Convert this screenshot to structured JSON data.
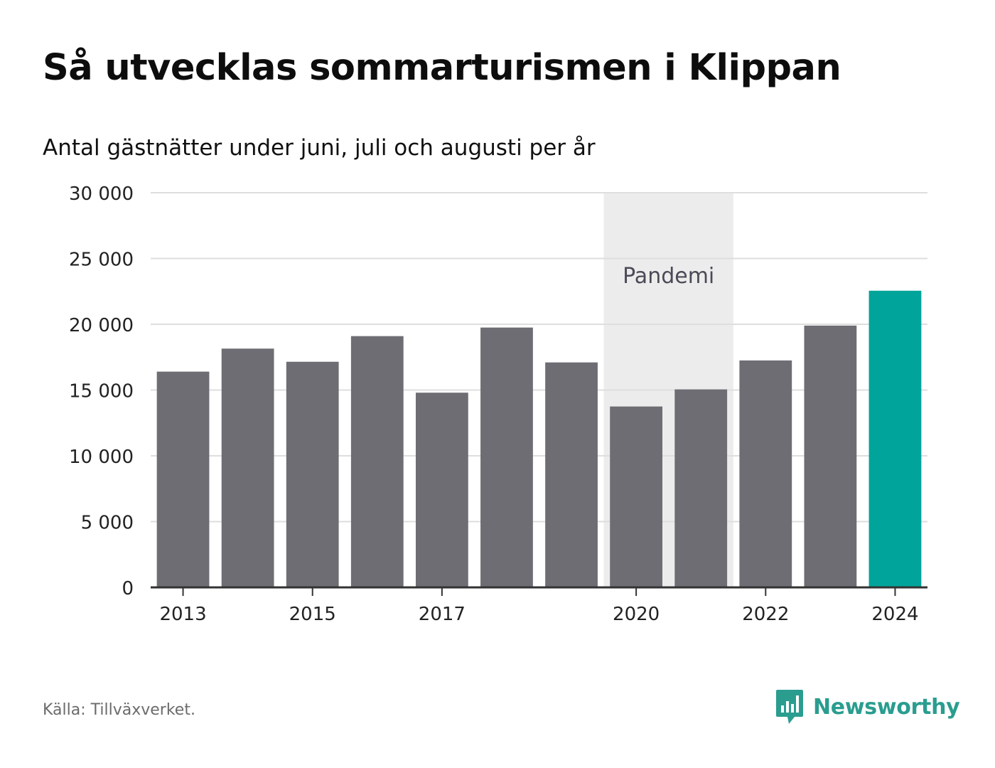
{
  "header": {
    "title": "Så utvecklas sommarturismen i Klippan",
    "subtitle": "Antal gästnätter under juni, juli och augusti per år"
  },
  "footer": {
    "source": "Källa: Tillväxverket.",
    "brand": "Newsworthy"
  },
  "colors": {
    "bar": "#6e6d73",
    "highlight": "#00a49a",
    "band": "#ececec",
    "grid": "#dedede",
    "axis": "#333333",
    "brand": "#2a9d8f"
  },
  "chart_data": {
    "type": "bar",
    "categories": [
      "2013",
      "2014",
      "2015",
      "2016",
      "2017",
      "2018",
      "2019",
      "2020",
      "2021",
      "2022",
      "2023",
      "2024"
    ],
    "values": [
      16400,
      18150,
      17150,
      19100,
      14800,
      19750,
      17100,
      13750,
      15050,
      17250,
      19900,
      22550
    ],
    "highlight_category": "2024",
    "x_tick_labels": [
      "2013",
      "2015",
      "2017",
      "2020",
      "2022",
      "2024"
    ],
    "ylim": [
      0,
      30000
    ],
    "yticks": [
      0,
      5000,
      10000,
      15000,
      20000,
      25000,
      30000
    ],
    "ytick_labels": [
      "0",
      "5 000",
      "10 000",
      "15 000",
      "20 000",
      "25 000",
      "30 000"
    ],
    "annotation": {
      "label": "Pandemi",
      "from": "2020",
      "to": "2021"
    },
    "grid": true,
    "legend": "none",
    "xlabel": "",
    "ylabel": ""
  }
}
